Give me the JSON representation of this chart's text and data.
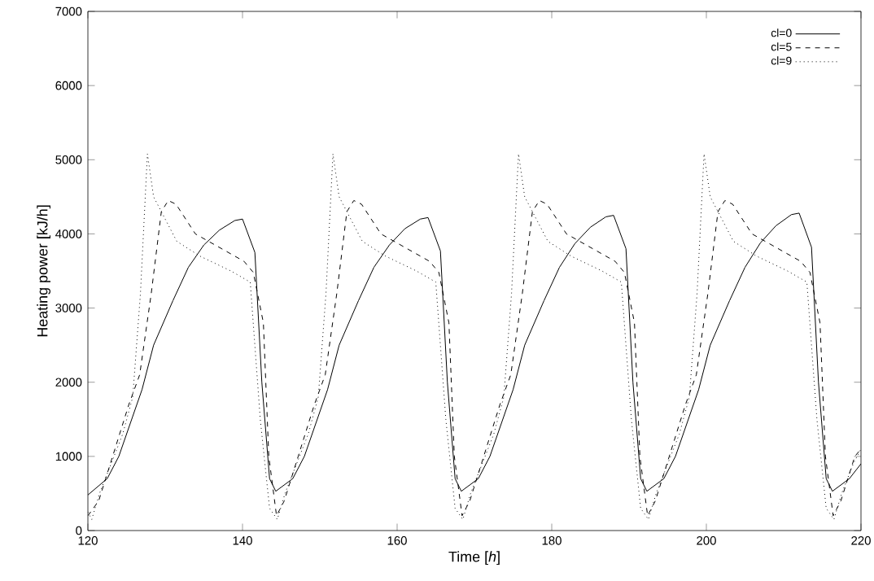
{
  "chart_data": {
    "type": "line",
    "xlabel": "Time [*h*]",
    "ylabel": "Heating power [kJ/h]",
    "xlim": [
      120,
      220
    ],
    "ylim": [
      0,
      7000
    ],
    "xticks": [
      120,
      140,
      160,
      180,
      200,
      220
    ],
    "yticks": [
      0,
      1000,
      2000,
      3000,
      4000,
      5000,
      6000,
      7000
    ],
    "legend": "top right",
    "grid": false,
    "marker": "none",
    "series": [
      {
        "name": "cl=0",
        "color": "#000000",
        "line_style": "solid",
        "x": [
          120,
          122.5,
          124,
          125.5,
          127,
          128.5,
          131,
          133,
          135,
          137,
          139,
          140,
          141.6,
          142.5,
          143.5,
          144.3,
          146.5,
          148,
          149.5,
          151,
          152.5,
          155,
          157,
          159,
          161,
          163,
          164,
          165.6,
          166.5,
          167.5,
          168.3,
          170.5,
          172,
          173.5,
          175,
          176.5,
          179,
          181,
          183,
          185,
          187,
          188,
          189.6,
          190.5,
          191.5,
          192.3,
          194.5,
          196,
          197.5,
          199,
          200.5,
          203,
          205,
          207,
          209,
          211,
          212,
          213.6,
          214.5,
          215.5,
          216.3,
          218.5,
          220
        ],
        "values": [
          480,
          700,
          1000,
          1450,
          1900,
          2500,
          3100,
          3550,
          3850,
          4050,
          4180,
          4200,
          3750,
          2000,
          700,
          530,
          700,
          1000,
          1450,
          1900,
          2500,
          3100,
          3550,
          3850,
          4070,
          4200,
          4220,
          3770,
          2000,
          700,
          530,
          700,
          1000,
          1450,
          1900,
          2500,
          3100,
          3550,
          3870,
          4090,
          4230,
          4250,
          3800,
          2000,
          700,
          530,
          700,
          1000,
          1450,
          1900,
          2500,
          3100,
          3550,
          3880,
          4110,
          4260,
          4280,
          3820,
          2000,
          700,
          530,
          700,
          900
        ]
      },
      {
        "name": "cl=5",
        "color": "#000000",
        "line_style": "dashed",
        "x": [
          120,
          121.4,
          123.2,
          125.3,
          126.7,
          128.2,
          129.5,
          130.4,
          131.4,
          133.9,
          140.2,
          141.4,
          142.7,
          143.4,
          144.4,
          145.4,
          147.2,
          149.3,
          150.7,
          152.2,
          153.5,
          154.4,
          155.4,
          157.9,
          164.2,
          165.4,
          166.7,
          167.4,
          168.4,
          169.4,
          171.2,
          173.3,
          174.7,
          176.2,
          177.5,
          178.4,
          179.4,
          181.9,
          188.2,
          189.4,
          190.7,
          191.4,
          192.4,
          193.4,
          195.2,
          197.3,
          198.7,
          200.2,
          201.5,
          202.4,
          203.4,
          205.9,
          212.2,
          213.4,
          214.7,
          215.4,
          216.4,
          217.4,
          219.2,
          220
        ],
        "values": [
          200,
          400,
          1000,
          1700,
          2100,
          3200,
          4300,
          4450,
          4400,
          4000,
          3630,
          3480,
          2800,
          1000,
          200,
          400,
          1000,
          1700,
          2100,
          3200,
          4300,
          4450,
          4400,
          4000,
          3630,
          3480,
          2800,
          1000,
          200,
          400,
          1000,
          1700,
          2100,
          3200,
          4300,
          4450,
          4400,
          4000,
          3630,
          3480,
          2800,
          1000,
          200,
          400,
          1000,
          1700,
          2100,
          3200,
          4300,
          4450,
          4400,
          4000,
          3630,
          3480,
          2800,
          1000,
          200,
          400,
          1000,
          1100
        ]
      },
      {
        "name": "cl=9",
        "color": "#000000",
        "line_style": "dotted",
        "x": [
          120,
          120.5,
          121.5,
          123,
          124.5,
          125.8,
          126.8,
          127.7,
          128.5,
          129.5,
          131.5,
          134.5,
          138.5,
          141,
          142.3,
          143.5,
          144.5,
          145.5,
          147,
          148.5,
          149.8,
          150.8,
          151.7,
          152.5,
          153.5,
          155.5,
          158.5,
          162.5,
          165,
          166.3,
          167.5,
          168.5,
          169.5,
          171,
          172.5,
          173.8,
          174.8,
          175.7,
          176.5,
          177.5,
          179.5,
          182.5,
          186.5,
          189,
          190.3,
          191.5,
          192.5,
          193.5,
          195,
          196.5,
          197.8,
          198.8,
          199.7,
          200.5,
          201.5,
          203.5,
          206.5,
          210.5,
          213,
          214.3,
          215.5,
          216.5,
          217.5,
          219,
          220
        ],
        "values": [
          250,
          150,
          500,
          900,
          1300,
          1800,
          3200,
          5080,
          4500,
          4300,
          3900,
          3700,
          3500,
          3350,
          1500,
          300,
          150,
          500,
          900,
          1300,
          1800,
          3200,
          5080,
          4500,
          4300,
          3900,
          3700,
          3500,
          3350,
          1500,
          300,
          150,
          500,
          900,
          1300,
          1800,
          3200,
          5080,
          4500,
          4300,
          3900,
          3700,
          3500,
          3350,
          1500,
          300,
          150,
          500,
          900,
          1300,
          1800,
          3200,
          5080,
          4500,
          4300,
          3900,
          3700,
          3500,
          3350,
          1500,
          300,
          150,
          500,
          900,
          1100
        ]
      }
    ]
  }
}
